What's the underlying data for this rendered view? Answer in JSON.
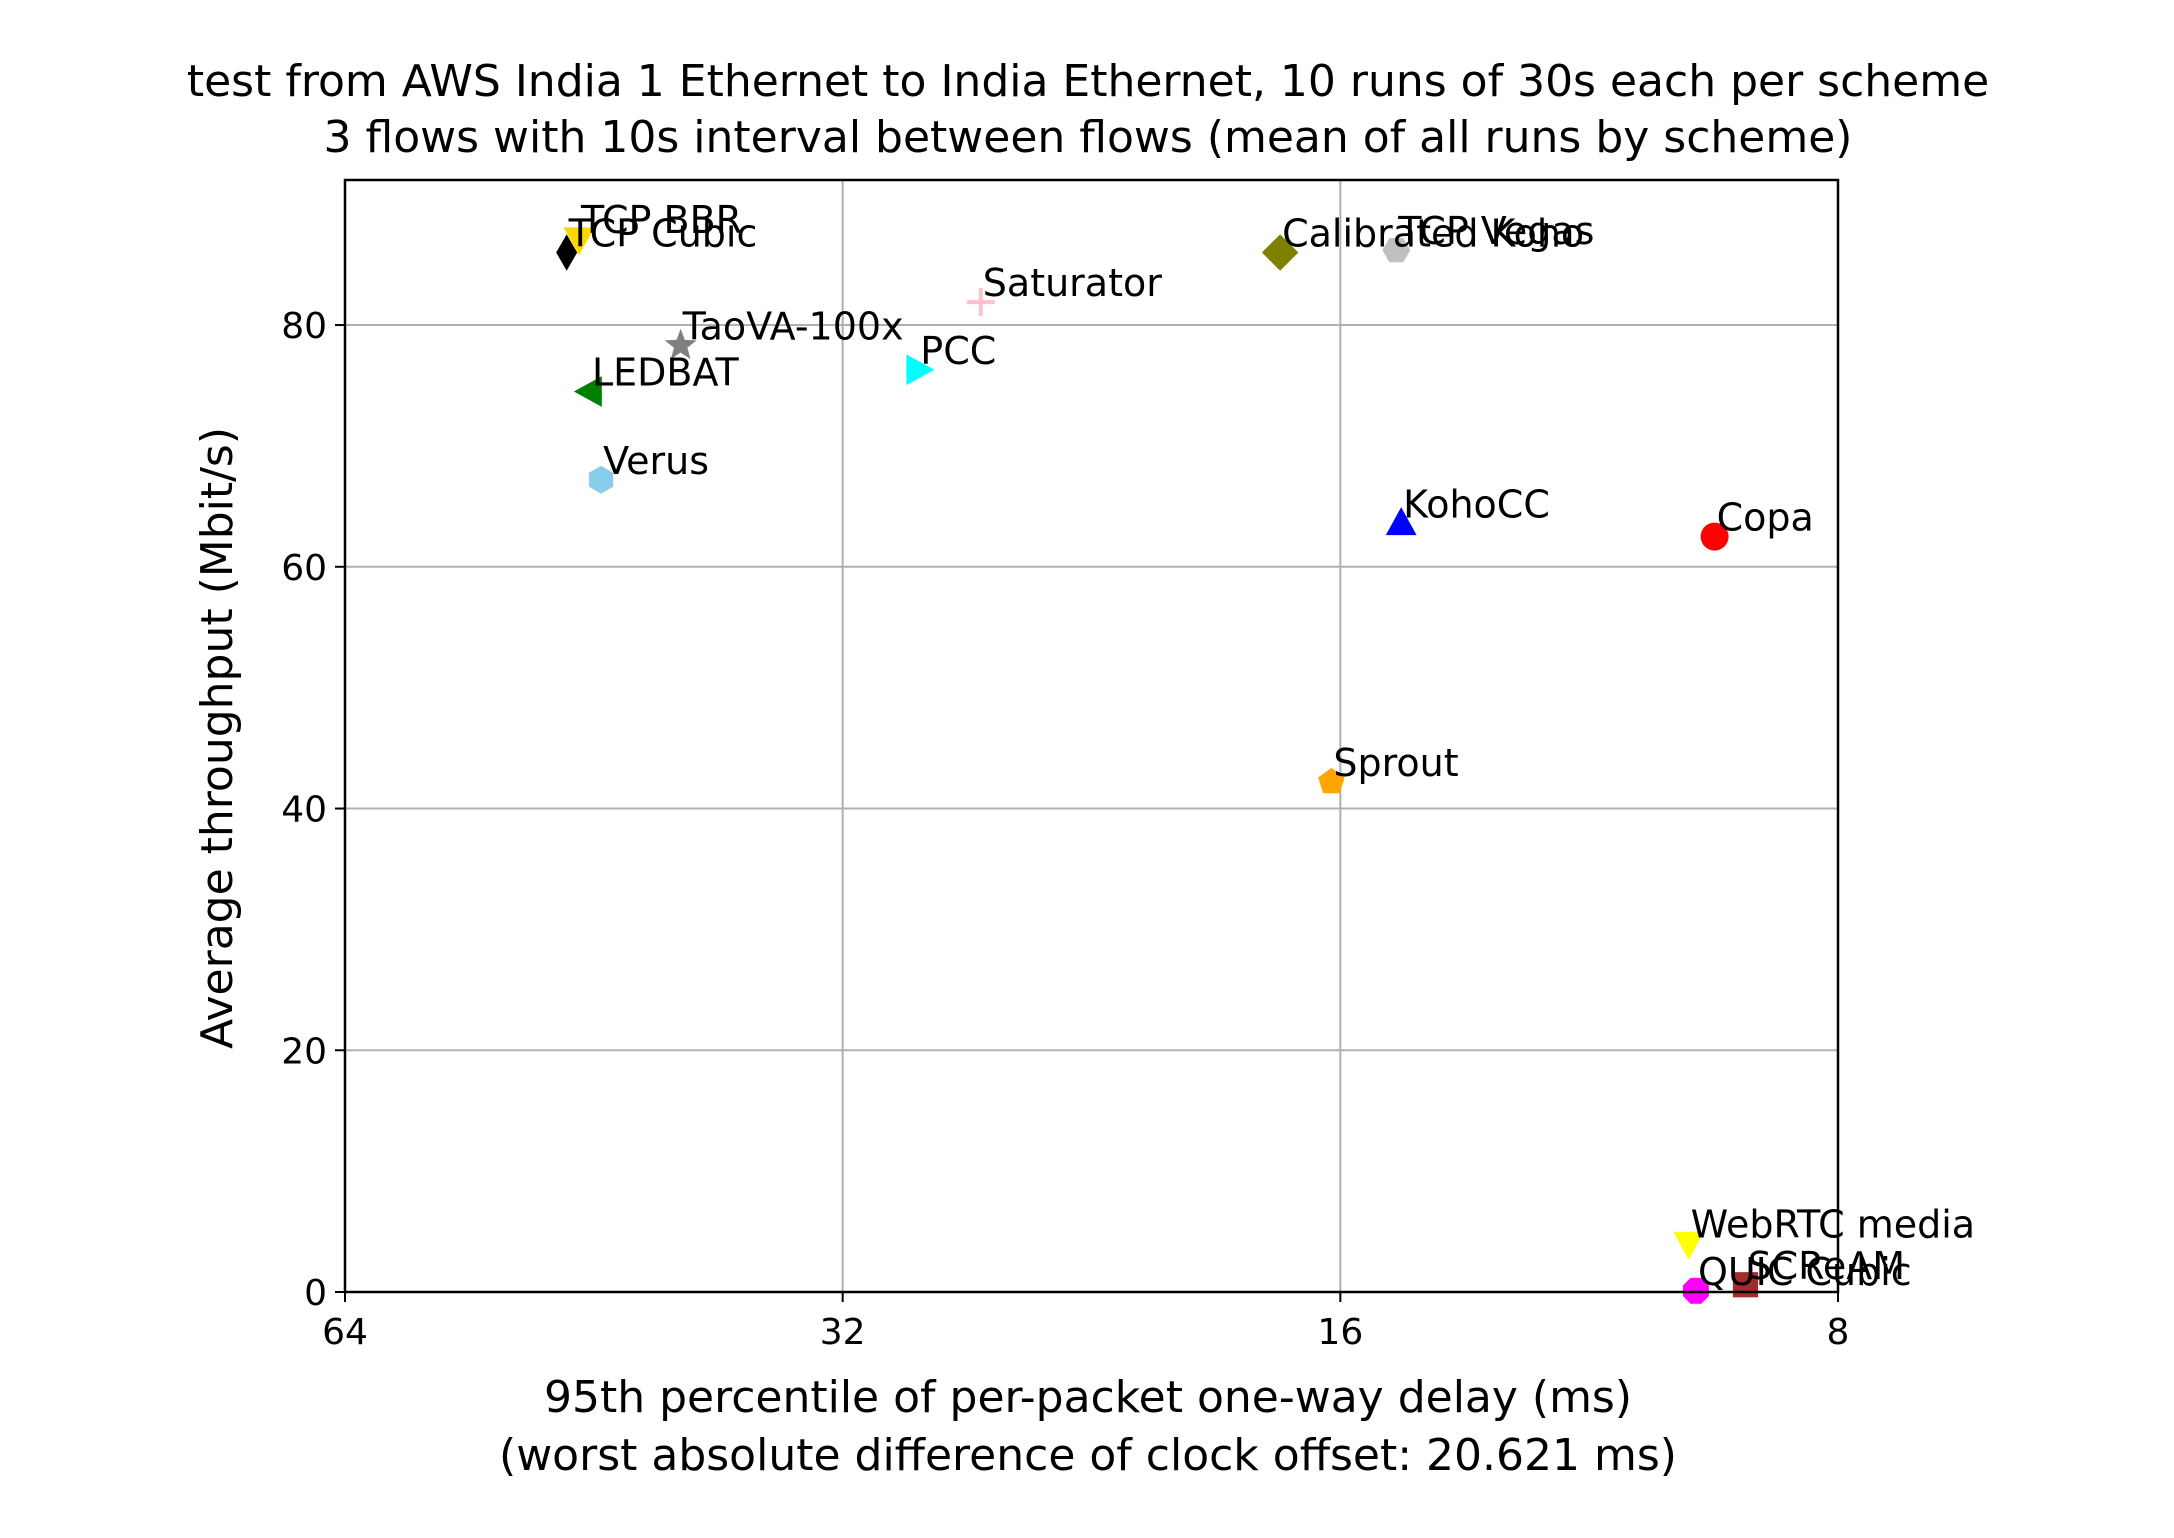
{
  "chart_data": {
    "type": "scatter",
    "title_line1": "test from AWS India 1 Ethernet to India Ethernet, 10 runs of 30s each per scheme",
    "title_line2": "3 flows with 10s interval between flows (mean of all runs by scheme)",
    "xlabel_line1": "95th percentile of per-packet one-way delay (ms)",
    "xlabel_line2": "(worst absolute difference of clock offset: 20.621 ms)",
    "ylabel": "Average throughput (Mbit/s)",
    "x_scale": "log2, inverted",
    "xlim": [
      64,
      8
    ],
    "ylim": [
      0,
      92
    ],
    "x_ticks": [
      64,
      32,
      16,
      8
    ],
    "x_tick_labels": [
      "64",
      "32",
      "16",
      "8"
    ],
    "y_ticks": [
      0,
      20,
      40,
      60,
      80
    ],
    "y_tick_labels": [
      "0",
      "20",
      "40",
      "60",
      "80"
    ],
    "grid": true,
    "points": [
      {
        "name": "TCP BBR",
        "x": 46.2,
        "y": 87.1,
        "color": "#ffd700",
        "marker": "triangle-down"
      },
      {
        "name": "TCP Cubic",
        "x": 47.0,
        "y": 86.0,
        "color": "#000000",
        "marker": "diamond-thin"
      },
      {
        "name": "Saturator",
        "x": 26.4,
        "y": 81.9,
        "color": "#ffc0cb",
        "marker": "plus"
      },
      {
        "name": "TaoVA-100x",
        "x": 40.1,
        "y": 78.3,
        "color": "#808080",
        "marker": "star"
      },
      {
        "name": "PCC",
        "x": 28.8,
        "y": 76.3,
        "color": "#00ffff",
        "marker": "triangle-right"
      },
      {
        "name": "LEDBAT",
        "x": 45.5,
        "y": 74.5,
        "color": "#008000",
        "marker": "triangle-left"
      },
      {
        "name": "Verus",
        "x": 44.8,
        "y": 67.2,
        "color": "#87ceeb",
        "marker": "hexagon"
      },
      {
        "name": "Calibrated Koho",
        "x": 17.4,
        "y": 86.0,
        "color": "#808000",
        "marker": "diamond"
      },
      {
        "name": "TCP Vegas",
        "x": 14.8,
        "y": 86.2,
        "color": "#c0c0c0",
        "marker": "hexagon2"
      },
      {
        "name": "KohoCC",
        "x": 14.7,
        "y": 63.6,
        "color": "#0000ff",
        "marker": "triangle-up"
      },
      {
        "name": "Copa",
        "x": 9.5,
        "y": 62.5,
        "color": "#ff0000",
        "marker": "circle"
      },
      {
        "name": "Sprout",
        "x": 16.2,
        "y": 42.2,
        "color": "#ffa500",
        "marker": "pentagon"
      },
      {
        "name": "WebRTC media",
        "x": 9.85,
        "y": 4.0,
        "color": "#ffff00",
        "marker": "triangle-down"
      },
      {
        "name": "SCReAM",
        "x": 9.1,
        "y": 0.6,
        "color": "#a52a2a",
        "marker": "square"
      },
      {
        "name": "QUIC Cubic",
        "x": 9.75,
        "y": 0.1,
        "color": "#ff00ff",
        "marker": "octagon"
      }
    ]
  }
}
